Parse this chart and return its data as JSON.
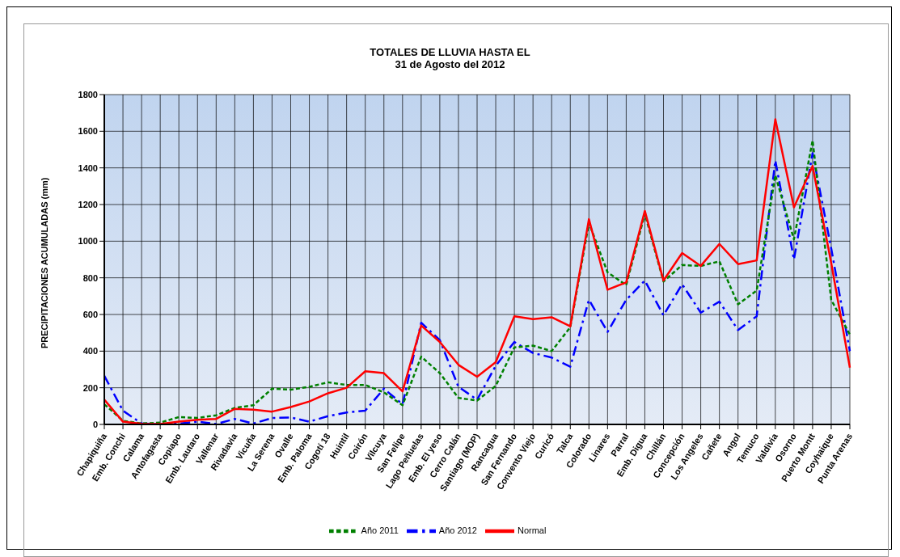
{
  "chart_data": {
    "type": "line",
    "title": "TOTALES DE LLUVIA HASTA EL",
    "subtitle": "31 de Agosto del 2012",
    "ylabel": "PRECIPITACIONES ACUMULADAS (mm)",
    "categories": [
      "Chapiquiña",
      "Emb. Conchi",
      "Calama",
      "Antofagasta",
      "Copiapo",
      "Emb. Lautaro",
      "Vallenar",
      "Rivadavia",
      "Vicuña",
      "La Serena",
      "Ovalle",
      "Emb. Paloma",
      "Cogotí 18",
      "Huintil",
      "Coirón",
      "Vilcuya",
      "San Felipe",
      "Lago Peñuelas",
      "Emb. El yeso",
      "Cerro Calán",
      "Santiago (MOP)",
      "Rancagua",
      "San Fernando",
      "Convento Viejo",
      "Curicó",
      "Talca",
      "Colorado",
      "Linares",
      "Parral",
      "Emb. Digua",
      "Chillán",
      "Concepción",
      "Los Angeles",
      "Cañete",
      "Angol",
      "Temuco",
      "Valdivia",
      "Osorno",
      "Puerto Montt",
      "Coyhaique",
      "Punta Arenas"
    ],
    "series": [
      {
        "name": "Año 2012",
        "color": "#0000ff",
        "line_style": "dashed",
        "values": [
          265,
          75,
          5,
          0,
          5,
          15,
          2,
          30,
          5,
          35,
          38,
          15,
          45,
          65,
          75,
          195,
          110,
          555,
          460,
          205,
          135,
          320,
          450,
          390,
          365,
          315,
          680,
          505,
          680,
          785,
          595,
          765,
          610,
          670,
          515,
          590,
          1440,
          900,
          1480,
          960,
          400
        ]
      },
      {
        "name": "Año 2011",
        "color": "#008000",
        "line_style": "dotted",
        "values": [
          110,
          20,
          5,
          10,
          40,
          35,
          50,
          90,
          105,
          195,
          190,
          205,
          230,
          215,
          215,
          175,
          105,
          370,
          280,
          145,
          130,
          210,
          420,
          430,
          400,
          530,
          1100,
          830,
          760,
          1150,
          780,
          870,
          865,
          890,
          655,
          730,
          1360,
          1010,
          1550,
          680,
          490
        ]
      },
      {
        "name": "Normal",
        "color": "#ff0000",
        "line_style": "solid",
        "values": [
          135,
          15,
          3,
          2,
          15,
          25,
          30,
          85,
          80,
          70,
          95,
          125,
          170,
          200,
          290,
          280,
          180,
          540,
          450,
          325,
          260,
          340,
          590,
          575,
          585,
          535,
          1120,
          735,
          775,
          1165,
          785,
          935,
          865,
          985,
          875,
          895,
          1665,
          1185,
          1410,
          880,
          310
        ]
      }
    ],
    "ylim": [
      0,
      1800
    ],
    "yticks": [
      0,
      200,
      400,
      600,
      800,
      1000,
      1200,
      1400,
      1600,
      1800
    ],
    "grid": true,
    "legend": "bottom",
    "marker": "none"
  }
}
